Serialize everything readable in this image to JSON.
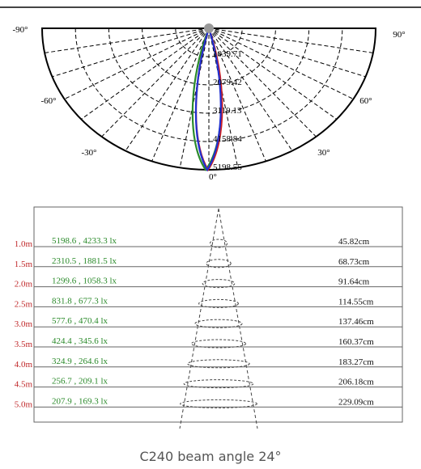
{
  "polar": {
    "angle_labels": [
      "-90°",
      "90°",
      "-60°",
      "60°",
      "-30°",
      "30°",
      "0°"
    ],
    "radial_labels": [
      "1039.71",
      "2079.42",
      "3119.13",
      "4158.84",
      "5198.55"
    ]
  },
  "table": {
    "rows": [
      {
        "distance": "1.0m",
        "lux": "5198.6 , 4233.3 lx",
        "diameter": "45.82cm"
      },
      {
        "distance": "1.5m",
        "lux": "2310.5 , 1881.5 lx",
        "diameter": "68.73cm"
      },
      {
        "distance": "2.0m",
        "lux": "1299.6 , 1058.3 lx",
        "diameter": "91.64cm"
      },
      {
        "distance": "2.5m",
        "lux": "831.8 , 677.3 lx",
        "diameter": "114.55cm"
      },
      {
        "distance": "3.0m",
        "lux": "577.6 , 470.4 lx",
        "diameter": "137.46cm"
      },
      {
        "distance": "3.5m",
        "lux": "424.4 , 345.6 lx",
        "diameter": "160.37cm"
      },
      {
        "distance": "4.0m",
        "lux": "324.9 , 264.6 lx",
        "diameter": "183.27cm"
      },
      {
        "distance": "4.5m",
        "lux": "256.7 , 209.1 lx",
        "diameter": "206.18cm"
      },
      {
        "distance": "5.0m",
        "lux": "207.9 , 169.3 lx",
        "diameter": "229.09cm"
      }
    ]
  },
  "caption": "C240 beam angle 24°"
}
